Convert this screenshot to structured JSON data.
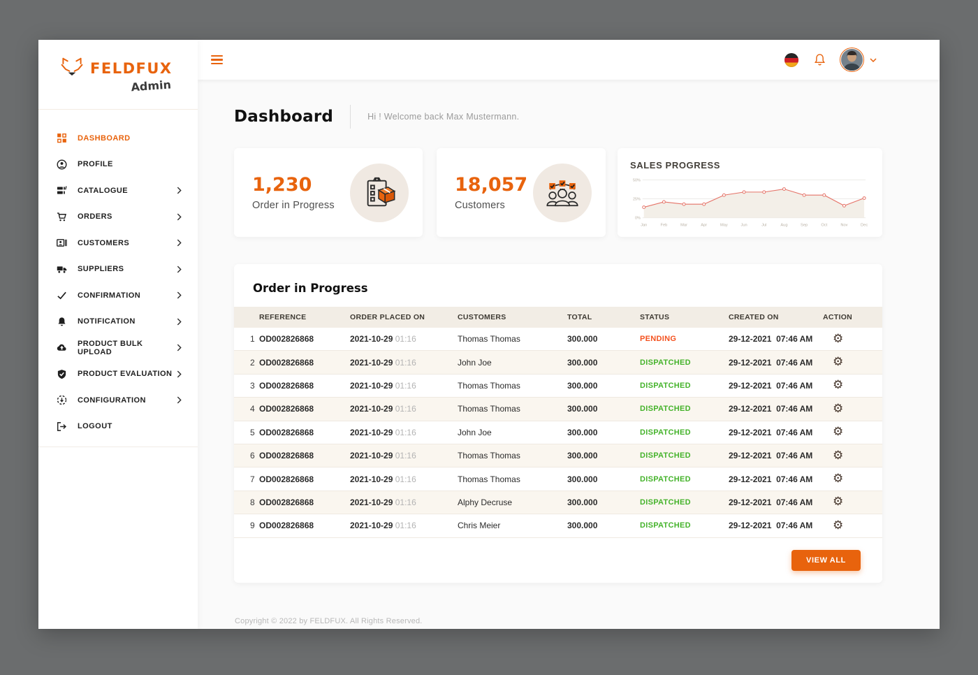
{
  "colors": {
    "accent": "#e8630d",
    "pending": "#f4511e",
    "dispatched": "#45b32b",
    "chart_line": "#e57368",
    "chart_fill": "#f3efe8"
  },
  "brand": {
    "logo_icon": "fox-icon",
    "name": "FELDFUX",
    "subtitle": "Admin"
  },
  "topbar": {
    "menu_icon": "hamburger-icon",
    "language_icon": "german-flag-icon",
    "notification_icon": "bell-icon",
    "avatar": "user-avatar",
    "dropdown_icon": "chevron-down-icon"
  },
  "sidebar": {
    "items": [
      {
        "label": "DASHBOARD",
        "icon": "dashboard-grid-icon",
        "active": true,
        "chevron": false
      },
      {
        "label": "PROFILE",
        "icon": "profile-icon",
        "active": false,
        "chevron": false
      },
      {
        "label": "CATALOGUE",
        "icon": "catalogue-icon",
        "active": false,
        "chevron": true
      },
      {
        "label": "ORDERS",
        "icon": "orders-cart-icon",
        "active": false,
        "chevron": true
      },
      {
        "label": "CUSTOMERS",
        "icon": "customers-card-icon",
        "active": false,
        "chevron": true
      },
      {
        "label": "SUPPLIERS",
        "icon": "suppliers-truck-icon",
        "active": false,
        "chevron": true
      },
      {
        "label": "CONFIRMATION",
        "icon": "confirmation-check-icon",
        "active": false,
        "chevron": true
      },
      {
        "label": "NOTIFICATION",
        "icon": "notification-bell-icon",
        "active": false,
        "chevron": true
      },
      {
        "label": "PRODUCT BULK UPLOAD",
        "icon": "bulk-upload-cloud-icon",
        "active": false,
        "chevron": true
      },
      {
        "label": "PRODUCT EVALUATION",
        "icon": "evaluation-shield-icon",
        "active": false,
        "chevron": true
      },
      {
        "label": "CONFIGURATION",
        "icon": "configuration-icon",
        "active": false,
        "chevron": true
      },
      {
        "label": "LOGOUT",
        "icon": "logout-icon",
        "active": false,
        "chevron": false
      }
    ]
  },
  "page": {
    "title": "Dashboard",
    "welcome": "Hi !  Welcome back Max Mustermann."
  },
  "stat_cards": [
    {
      "value": "1,230",
      "label": "Order in Progress",
      "icon": "clipboard-package-icon"
    },
    {
      "value": "18,057",
      "label": "Customers",
      "icon": "customers-group-icon"
    }
  ],
  "chart_data": {
    "type": "area",
    "title": "SALES PROGRESS",
    "x": [
      "Jan",
      "Feb",
      "Mar",
      "Apr",
      "May",
      "Jun",
      "Jul",
      "Aug",
      "Sep",
      "Oct",
      "Nov",
      "Dec"
    ],
    "series": [
      {
        "name": "Sales",
        "values": [
          14,
          21,
          18,
          18,
          30,
          34,
          34,
          38,
          30,
          30,
          16,
          26
        ]
      }
    ],
    "xlabel": "",
    "ylabel": "",
    "ylim": [
      0,
      50
    ],
    "yticks": [
      {
        "value": 0,
        "label": "0%"
      },
      {
        "value": 25,
        "label": "25%"
      },
      {
        "value": 50,
        "label": "50%"
      }
    ],
    "grid": true,
    "legend_position": "none"
  },
  "orders_table": {
    "title": "Order in Progress",
    "columns": [
      "",
      "REFERENCE",
      "ORDER PLACED ON",
      "CUSTOMERS",
      "TOTAL",
      "STATUS",
      "CREATED ON",
      "ACTION"
    ],
    "rows": [
      {
        "index": "1",
        "reference": "OD002826868",
        "placed_date": "2021-10-29",
        "placed_time": "01:16",
        "customer": "Thomas Thomas",
        "total": "300.000",
        "status": "PENDING",
        "created_date": "29-12-2021",
        "created_time": "07:46 AM"
      },
      {
        "index": "2",
        "reference": "OD002826868",
        "placed_date": "2021-10-29",
        "placed_time": "01:16",
        "customer": "John Joe",
        "total": "300.000",
        "status": "DISPATCHED",
        "created_date": "29-12-2021",
        "created_time": "07:46 AM"
      },
      {
        "index": "3",
        "reference": "OD002826868",
        "placed_date": "2021-10-29",
        "placed_time": "01:16",
        "customer": "Thomas Thomas",
        "total": "300.000",
        "status": "DISPATCHED",
        "created_date": "29-12-2021",
        "created_time": "07:46 AM"
      },
      {
        "index": "4",
        "reference": "OD002826868",
        "placed_date": "2021-10-29",
        "placed_time": "01:16",
        "customer": "Thomas Thomas",
        "total": "300.000",
        "status": "DISPATCHED",
        "created_date": "29-12-2021",
        "created_time": "07:46 AM"
      },
      {
        "index": "5",
        "reference": "OD002826868",
        "placed_date": "2021-10-29",
        "placed_time": "01:16",
        "customer": "John Joe",
        "total": "300.000",
        "status": "DISPATCHED",
        "created_date": "29-12-2021",
        "created_time": "07:46 AM"
      },
      {
        "index": "6",
        "reference": "OD002826868",
        "placed_date": "2021-10-29",
        "placed_time": "01:16",
        "customer": "Thomas Thomas",
        "total": "300.000",
        "status": "DISPATCHED",
        "created_date": "29-12-2021",
        "created_time": "07:46 AM"
      },
      {
        "index": "7",
        "reference": "OD002826868",
        "placed_date": "2021-10-29",
        "placed_time": "01:16",
        "customer": "Thomas Thomas",
        "total": "300.000",
        "status": "DISPATCHED",
        "created_date": "29-12-2021",
        "created_time": "07:46 AM"
      },
      {
        "index": "8",
        "reference": "OD002826868",
        "placed_date": "2021-10-29",
        "placed_time": "01:16",
        "customer": "Alphy Decruse",
        "total": "300.000",
        "status": "DISPATCHED",
        "created_date": "29-12-2021",
        "created_time": "07:46 AM"
      },
      {
        "index": "9",
        "reference": "OD002826868",
        "placed_date": "2021-10-29",
        "placed_time": "01:16",
        "customer": "Chris Meier",
        "total": "300.000",
        "status": "DISPATCHED",
        "created_date": "29-12-2021",
        "created_time": "07:46 AM"
      }
    ],
    "action_icon": "settings-gear-icon",
    "view_all_label": "VIEW ALL"
  },
  "footer": {
    "copyright": "Copyright © 2022 by FELDFUX. All Rights Reserved."
  }
}
